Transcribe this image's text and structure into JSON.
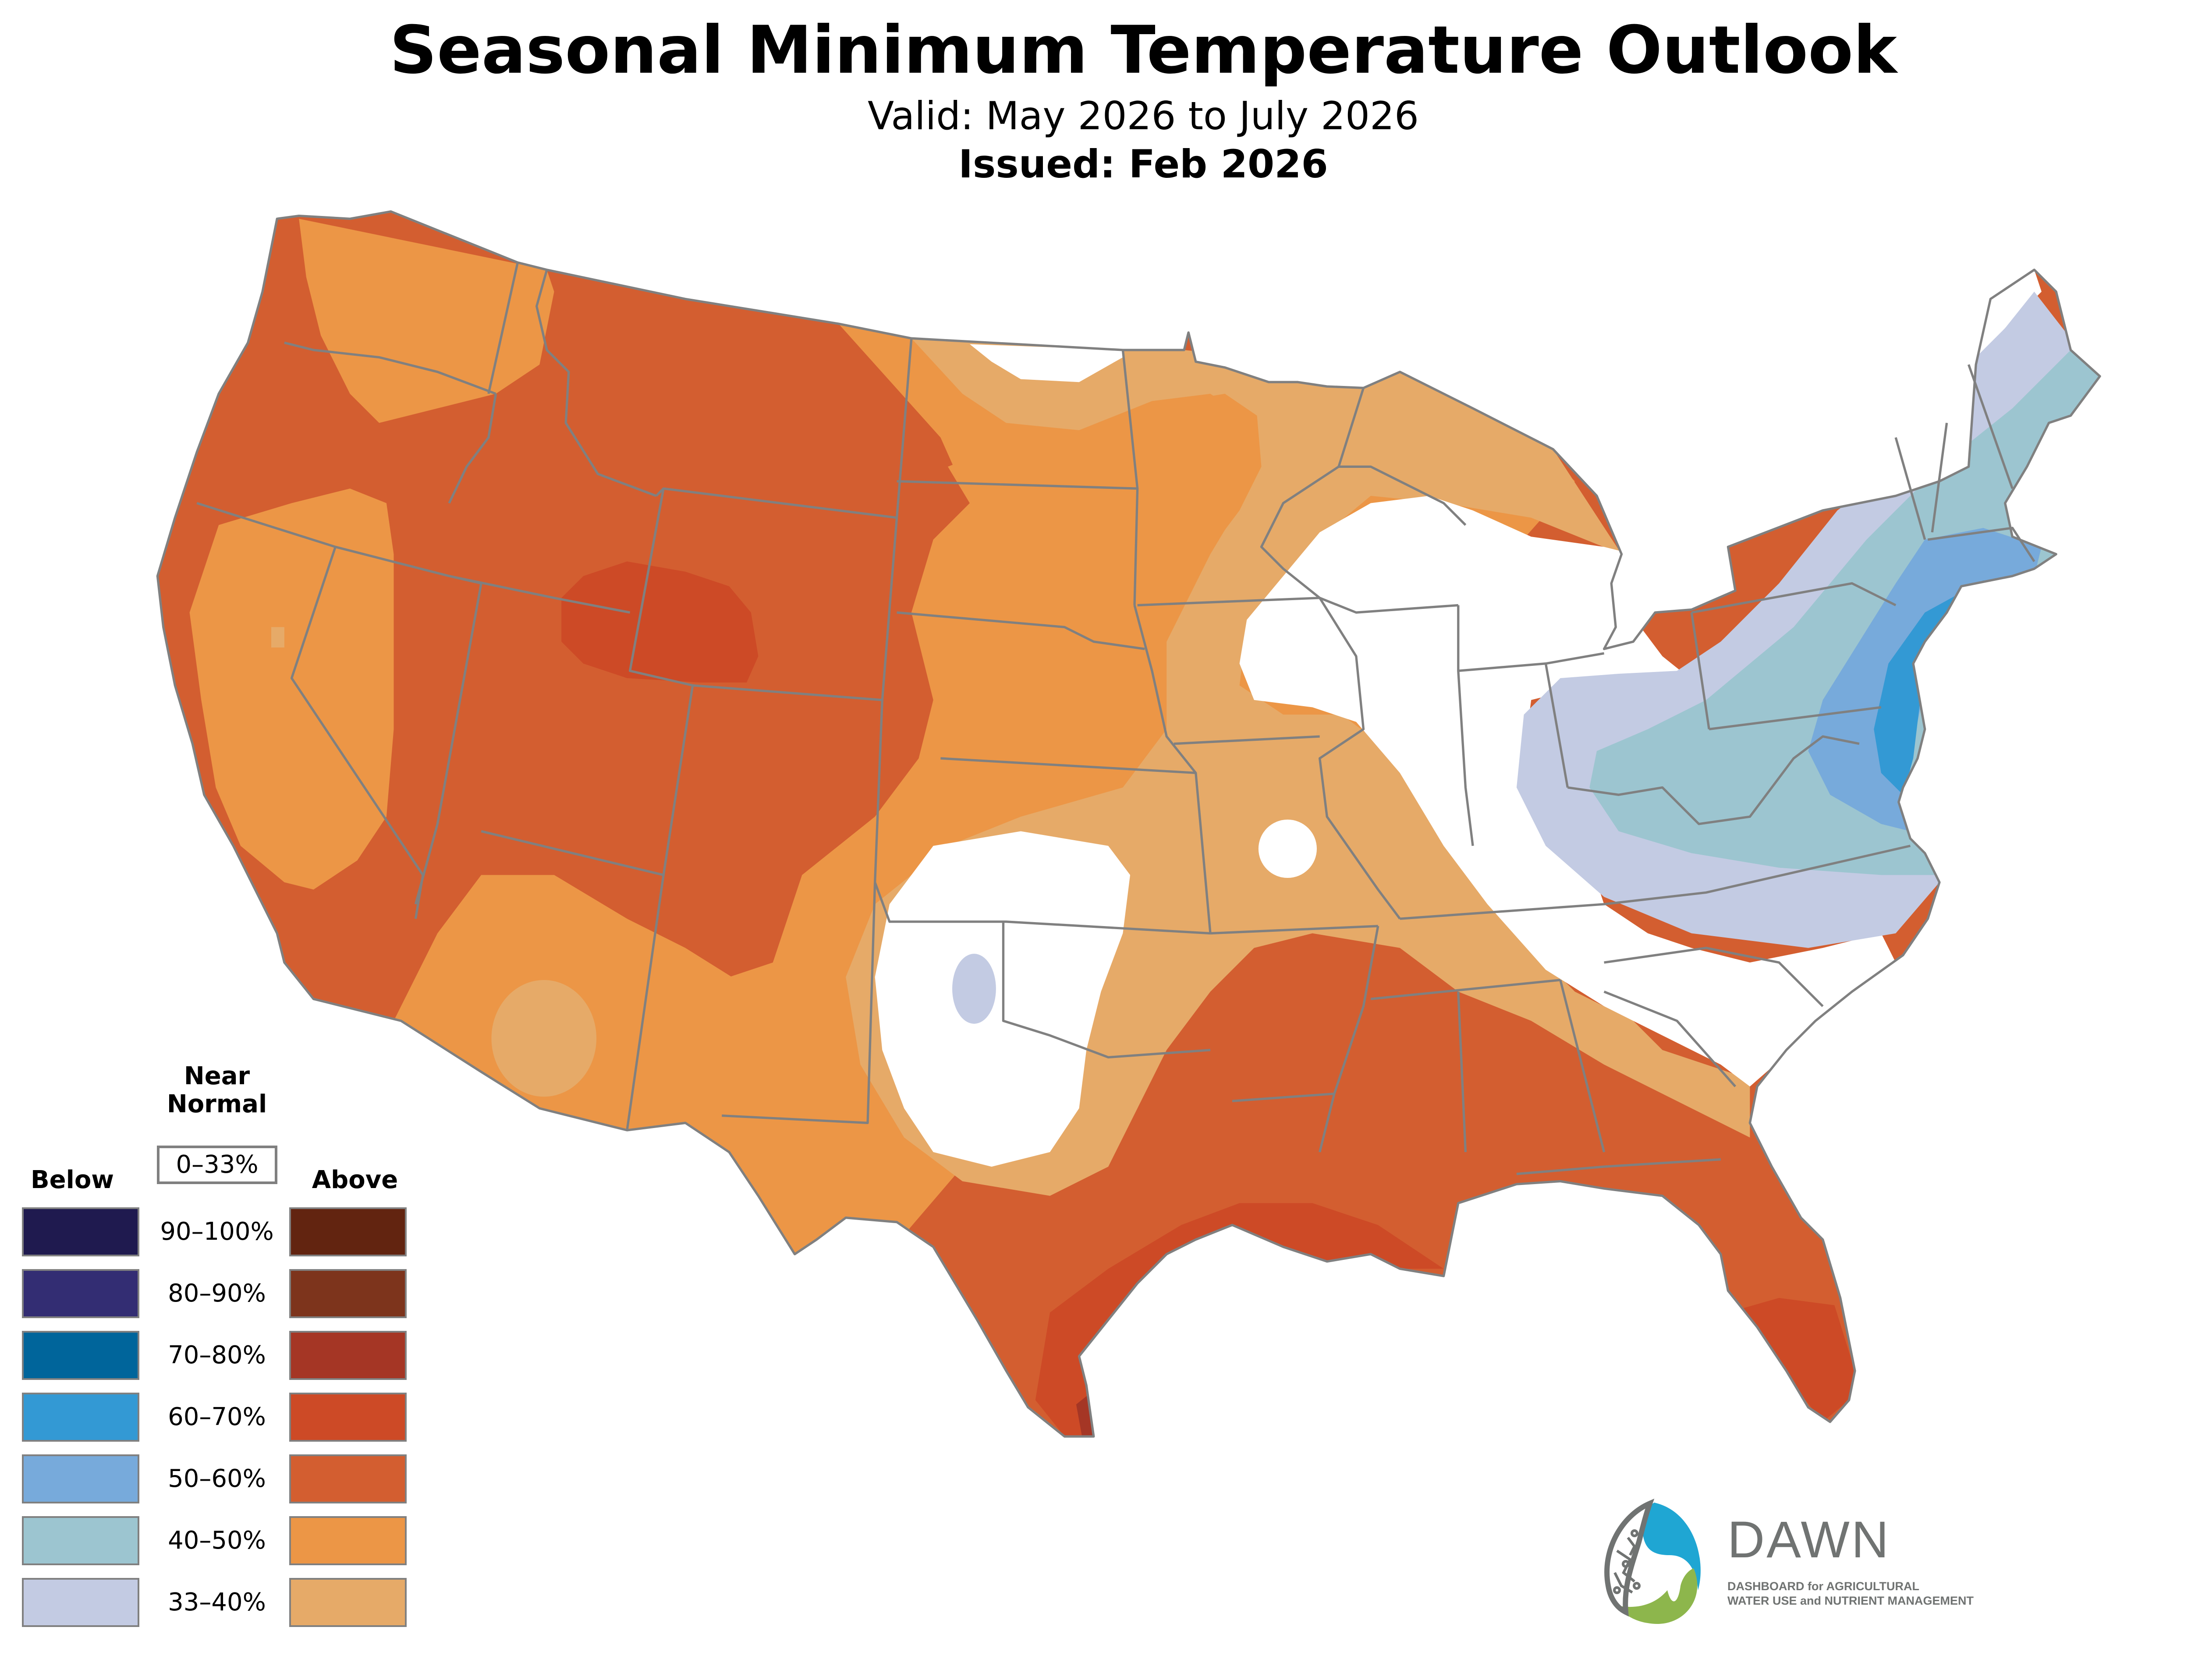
{
  "header": {
    "title": "Seasonal Minimum Temperature Outlook",
    "valid": "Valid: May 2026 to July 2026",
    "issued": "Issued: Feb 2026"
  },
  "legend": {
    "below_label": "Below",
    "near_normal_label_line1": "Near",
    "near_normal_label_line2": "Normal",
    "near_normal_range": "0–33%",
    "above_label": "Above",
    "bins": [
      {
        "range": "90–100%",
        "below_color": "#1f1a4f",
        "above_color": "#622410"
      },
      {
        "range": "80–90%",
        "below_color": "#332d73",
        "above_color": "#7d341c"
      },
      {
        "range": "70–80%",
        "below_color": "#00659b",
        "above_color": "#a53625"
      },
      {
        "range": "60–70%",
        "below_color": "#3399d4",
        "above_color": "#cd4a26"
      },
      {
        "range": "50–60%",
        "below_color": "#77aadb",
        "above_color": "#d35e30"
      },
      {
        "range": "40–50%",
        "below_color": "#9cc5d0",
        "above_color": "#ec9646"
      },
      {
        "range": "33–40%",
        "below_color": "#c3cbe3",
        "above_color": "#e6aa68"
      }
    ]
  },
  "map": {
    "border_color": "#808080",
    "regions": [
      {
        "category": "Above",
        "probability": "40–50%",
        "area": "Northern Washington / Idaho panhandle"
      },
      {
        "category": "Above",
        "probability": "50–60%",
        "area": "Oregon, Idaho, Montana, Wyoming, Utah, Colorado, western coast"
      },
      {
        "category": "Above",
        "probability": "60–70%",
        "area": "Southwest Montana / Wyoming core"
      },
      {
        "category": "Above",
        "probability": "40–50%",
        "area": "Central California / western Nevada"
      },
      {
        "category": "Above",
        "probability": "40–50%",
        "area": "Arizona, New Mexico, Great Plains, Dakotas, Nebraska"
      },
      {
        "category": "Above",
        "probability": "33–40%",
        "area": "Minnesota, Wisconsin, Michigan, Iowa, Missouri, Kansas, Texas panhandle ring"
      },
      {
        "category": "Near Normal",
        "probability": "0–33%",
        "area": "Oklahoma / west Texas, Illinois, Ohio Valley, Carolinas, northern Maine"
      },
      {
        "category": "Below",
        "probability": "33–40%",
        "area": "Western Oklahoma spot, Ohio Valley to Maine"
      },
      {
        "category": "Below",
        "probability": "40–50%",
        "area": "Appalachians to Maine"
      },
      {
        "category": "Below",
        "probability": "50–60%",
        "area": "Mid-Atlantic to southern New England"
      },
      {
        "category": "Below",
        "probability": "60–70%",
        "area": "New Jersey / Delaware / Long Island"
      },
      {
        "category": "Above",
        "probability": "50–60%",
        "area": "Gulf Coast states: Texas, Louisiana, Mississippi, Alabama, Georgia, Florida"
      },
      {
        "category": "Above",
        "probability": "60–70%",
        "area": "Texas coast, Louisiana, Florida peninsula"
      },
      {
        "category": "Above",
        "probability": "70–80%",
        "area": "Southern tip of Texas"
      }
    ]
  },
  "logo": {
    "word": "DAWN",
    "line1": "DASHBOARD for AGRICULTURAL",
    "line2": "WATER USE and NUTRIENT MANAGEMENT",
    "blue": "#1fa6d3",
    "green": "#8db64c",
    "gray": "#707372"
  }
}
